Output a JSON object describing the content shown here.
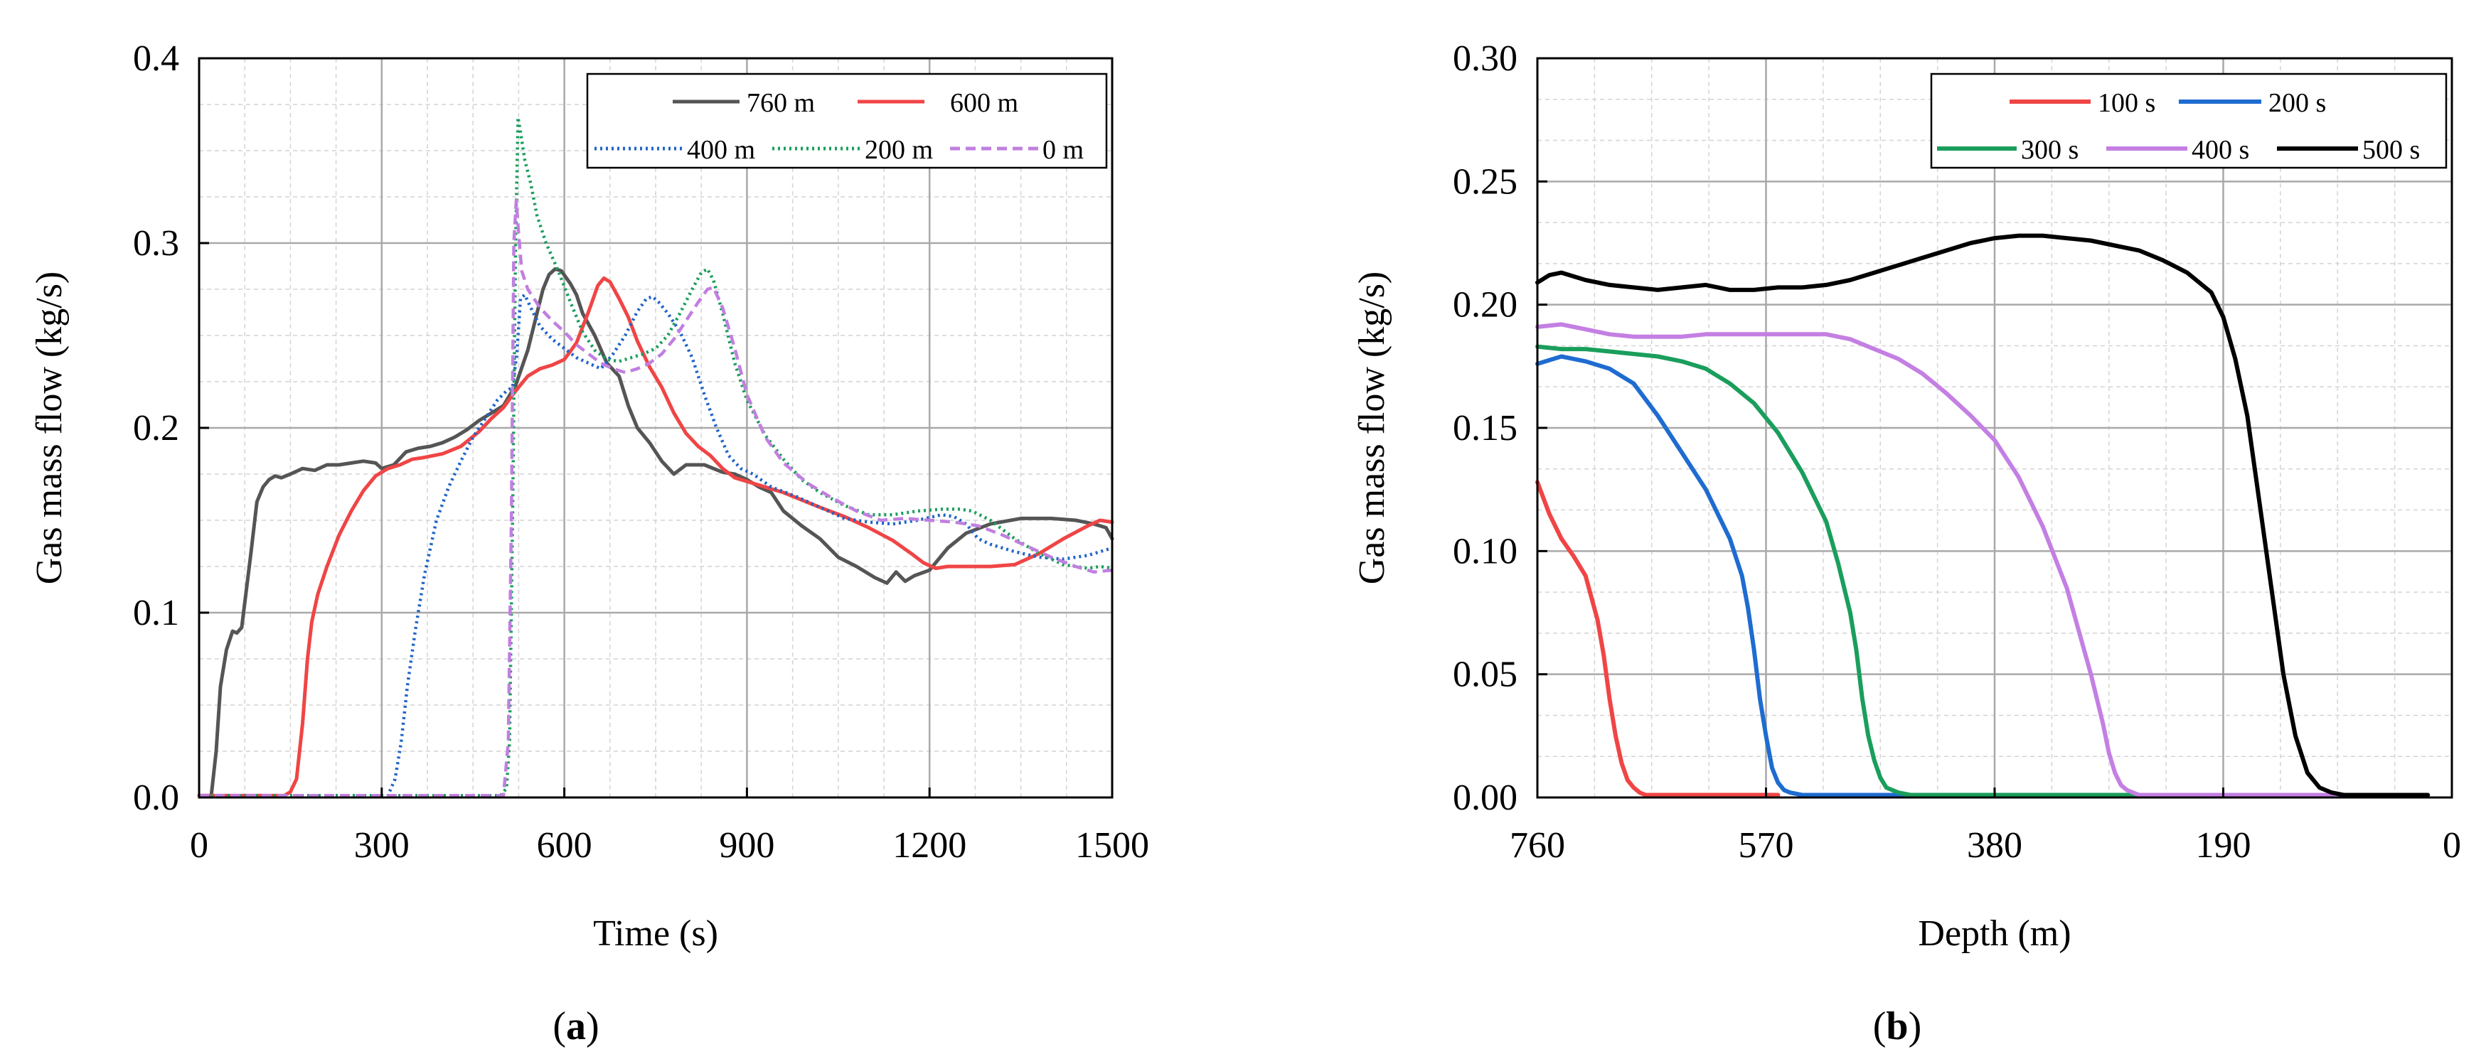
{
  "chart_data": [
    {
      "type": "line",
      "panel_label": "(a)",
      "panel_letter": "a",
      "title": "",
      "xlabel": "Time (s)",
      "ylabel": "Gas mass flow (kg/s)",
      "xlim": [
        0,
        1500
      ],
      "ylim": [
        0,
        0.4
      ],
      "xticks": [
        "0",
        "300",
        "600",
        "900",
        "1200",
        "1500"
      ],
      "yticks": [
        "0.0",
        "0.1",
        "0.2",
        "0.3",
        "0.4"
      ],
      "xtick_values": [
        0,
        300,
        600,
        900,
        1200,
        1500
      ],
      "ytick_values": [
        0,
        0.1,
        0.2,
        0.3,
        0.4
      ],
      "grid": true,
      "legend_position": "top-right",
      "legend_rows": [
        [
          "760 m",
          "600 m"
        ],
        [
          "400 m",
          "200 m",
          "0 m"
        ]
      ],
      "series": [
        {
          "name": "760 m",
          "color": "#555555",
          "dash": "solid",
          "x": [
            0,
            20,
            28,
            35,
            45,
            55,
            62,
            70,
            85,
            95,
            105,
            115,
            125,
            135,
            150,
            170,
            190,
            210,
            230,
            250,
            270,
            290,
            300,
            320,
            340,
            360,
            380,
            400,
            420,
            440,
            460,
            480,
            500,
            520,
            540,
            555,
            565,
            575,
            585,
            595,
            610,
            620,
            630,
            650,
            670,
            690,
            705,
            720,
            740,
            760,
            780,
            800,
            830,
            860,
            880,
            900,
            920,
            940,
            960,
            990,
            1020,
            1050,
            1080,
            1110,
            1130,
            1145,
            1160,
            1175,
            1200,
            1230,
            1260,
            1300,
            1350,
            1400,
            1440,
            1470,
            1490,
            1500
          ],
          "y": [
            0.001,
            0.001,
            0.025,
            0.06,
            0.08,
            0.09,
            0.089,
            0.092,
            0.132,
            0.16,
            0.168,
            0.172,
            0.174,
            0.173,
            0.175,
            0.178,
            0.177,
            0.18,
            0.18,
            0.181,
            0.182,
            0.181,
            0.178,
            0.18,
            0.187,
            0.189,
            0.19,
            0.192,
            0.195,
            0.199,
            0.204,
            0.208,
            0.212,
            0.223,
            0.242,
            0.262,
            0.275,
            0.283,
            0.286,
            0.285,
            0.278,
            0.272,
            0.262,
            0.25,
            0.235,
            0.228,
            0.212,
            0.2,
            0.192,
            0.182,
            0.175,
            0.18,
            0.18,
            0.176,
            0.175,
            0.172,
            0.168,
            0.165,
            0.155,
            0.147,
            0.14,
            0.13,
            0.125,
            0.119,
            0.116,
            0.122,
            0.117,
            0.12,
            0.123,
            0.135,
            0.143,
            0.148,
            0.151,
            0.151,
            0.15,
            0.148,
            0.146,
            0.14
          ]
        },
        {
          "name": "600 m",
          "color": "#f04545",
          "dash": "solid",
          "x": [
            0,
            140,
            150,
            160,
            170,
            178,
            185,
            195,
            210,
            230,
            250,
            270,
            290,
            310,
            330,
            350,
            370,
            400,
            430,
            460,
            480,
            500,
            520,
            540,
            560,
            580,
            600,
            620,
            640,
            655,
            665,
            675,
            690,
            705,
            720,
            740,
            760,
            780,
            800,
            820,
            840,
            860,
            880,
            900,
            930,
            960,
            990,
            1020,
            1060,
            1100,
            1140,
            1170,
            1190,
            1210,
            1230,
            1260,
            1300,
            1340,
            1380,
            1420,
            1460,
            1480,
            1500
          ],
          "y": [
            0.001,
            0.001,
            0.003,
            0.01,
            0.04,
            0.075,
            0.095,
            0.11,
            0.125,
            0.142,
            0.155,
            0.166,
            0.174,
            0.178,
            0.18,
            0.183,
            0.184,
            0.186,
            0.19,
            0.198,
            0.205,
            0.211,
            0.22,
            0.228,
            0.232,
            0.234,
            0.237,
            0.246,
            0.263,
            0.277,
            0.281,
            0.279,
            0.27,
            0.26,
            0.247,
            0.233,
            0.222,
            0.208,
            0.197,
            0.19,
            0.185,
            0.178,
            0.173,
            0.171,
            0.168,
            0.165,
            0.161,
            0.157,
            0.152,
            0.146,
            0.139,
            0.132,
            0.127,
            0.124,
            0.125,
            0.125,
            0.125,
            0.126,
            0.132,
            0.14,
            0.147,
            0.15,
            0.149
          ]
        },
        {
          "name": "400 m",
          "color": "#2164c9",
          "dash": "dotted",
          "x": [
            0,
            310,
            322,
            332,
            342,
            355,
            370,
            390,
            410,
            430,
            450,
            470,
            490,
            505,
            515,
            522,
            528,
            535,
            545,
            560,
            580,
            600,
            620,
            640,
            660,
            680,
            700,
            720,
            735,
            745,
            755,
            770,
            790,
            810,
            830,
            850,
            870,
            890,
            910,
            940,
            980,
            1020,
            1060,
            1100,
            1140,
            1180,
            1220,
            1240,
            1260,
            1280,
            1300,
            1340,
            1380,
            1420,
            1460,
            1480,
            1500
          ],
          "y": [
            0.001,
            0.001,
            0.01,
            0.03,
            0.06,
            0.09,
            0.12,
            0.15,
            0.168,
            0.182,
            0.195,
            0.205,
            0.215,
            0.22,
            0.222,
            0.24,
            0.27,
            0.272,
            0.265,
            0.255,
            0.248,
            0.243,
            0.238,
            0.235,
            0.232,
            0.24,
            0.25,
            0.263,
            0.27,
            0.271,
            0.268,
            0.262,
            0.252,
            0.238,
            0.218,
            0.2,
            0.185,
            0.178,
            0.175,
            0.168,
            0.163,
            0.157,
            0.151,
            0.149,
            0.148,
            0.15,
            0.153,
            0.152,
            0.148,
            0.14,
            0.137,
            0.133,
            0.13,
            0.129,
            0.131,
            0.133,
            0.135
          ]
        },
        {
          "name": "200 m",
          "color": "#1a9e5c",
          "dash": "dotted",
          "x": [
            0,
            495,
            505,
            510,
            515,
            520,
            524,
            528,
            535,
            545,
            555,
            570,
            590,
            610,
            630,
            650,
            670,
            690,
            710,
            730,
            750,
            770,
            790,
            810,
            825,
            835,
            845,
            860,
            880,
            900,
            930,
            960,
            990,
            1020,
            1060,
            1100,
            1140,
            1180,
            1220,
            1250,
            1270,
            1300,
            1340,
            1380,
            1420,
            1460,
            1480,
            1500
          ],
          "y": [
            0.001,
            0.001,
            0.005,
            0.03,
            0.15,
            0.3,
            0.368,
            0.36,
            0.345,
            0.332,
            0.315,
            0.3,
            0.285,
            0.268,
            0.252,
            0.242,
            0.237,
            0.236,
            0.238,
            0.24,
            0.243,
            0.25,
            0.262,
            0.275,
            0.284,
            0.286,
            0.28,
            0.262,
            0.235,
            0.215,
            0.196,
            0.183,
            0.172,
            0.165,
            0.158,
            0.153,
            0.153,
            0.155,
            0.156,
            0.156,
            0.155,
            0.15,
            0.14,
            0.132,
            0.126,
            0.124,
            0.125,
            0.124
          ]
        },
        {
          "name": "0 m",
          "color": "#c17fe0",
          "dash": "dashed",
          "x": [
            0,
            500,
            508,
            513,
            517,
            521,
            525,
            530,
            540,
            560,
            580,
            600,
            620,
            640,
            660,
            680,
            700,
            720,
            740,
            760,
            780,
            800,
            820,
            835,
            845,
            860,
            880,
            900,
            930,
            960,
            1000,
            1040,
            1080,
            1120,
            1160,
            1200,
            1240,
            1280,
            1320,
            1360,
            1400,
            1440,
            1470,
            1500
          ],
          "y": [
            0.001,
            0.001,
            0.03,
            0.15,
            0.3,
            0.323,
            0.305,
            0.285,
            0.275,
            0.265,
            0.258,
            0.252,
            0.245,
            0.24,
            0.235,
            0.232,
            0.23,
            0.232,
            0.235,
            0.24,
            0.248,
            0.258,
            0.268,
            0.275,
            0.276,
            0.265,
            0.243,
            0.218,
            0.195,
            0.181,
            0.17,
            0.162,
            0.155,
            0.15,
            0.151,
            0.15,
            0.149,
            0.147,
            0.142,
            0.136,
            0.13,
            0.125,
            0.122,
            0.123
          ]
        }
      ]
    },
    {
      "type": "line",
      "panel_label": "(b)",
      "panel_letter": "b",
      "title": "",
      "xlabel": "Depth (m)",
      "ylabel": "Gas mass flow (kg/s)",
      "xlim": [
        760,
        0
      ],
      "ylim": [
        0,
        0.3
      ],
      "xticks": [
        "760",
        "570",
        "380",
        "190",
        "0"
      ],
      "yticks": [
        "0.00",
        "0.05",
        "0.10",
        "0.15",
        "0.20",
        "0.25",
        "0.30"
      ],
      "xtick_values": [
        760,
        570,
        380,
        190,
        0
      ],
      "ytick_values": [
        0,
        0.05,
        0.1,
        0.15,
        0.2,
        0.25,
        0.3
      ],
      "grid": true,
      "legend_position": "top-right",
      "legend_rows": [
        [
          "100 s",
          "200 s"
        ],
        [
          "300 s",
          "400 s",
          "500 s"
        ]
      ],
      "series": [
        {
          "name": "100 s",
          "color": "#f04545",
          "dash": "solid",
          "x": [
            760,
            750,
            740,
            730,
            720,
            710,
            705,
            700,
            695,
            690,
            685,
            680,
            675,
            670,
            660,
            640,
            600,
            560
          ],
          "y": [
            0.128,
            0.115,
            0.105,
            0.098,
            0.09,
            0.072,
            0.058,
            0.04,
            0.025,
            0.014,
            0.007,
            0.004,
            0.002,
            0.001,
            0.001,
            0.001,
            0.001,
            0.001
          ],
          "label_note": ""
        },
        {
          "name": "200 s",
          "color": "#1f6cd0",
          "dash": "solid",
          "x": [
            760,
            740,
            720,
            700,
            680,
            660,
            640,
            620,
            600,
            590,
            585,
            580,
            575,
            570,
            565,
            560,
            555,
            550,
            540,
            530,
            520,
            500,
            400,
            330
          ],
          "y": [
            0.176,
            0.179,
            0.177,
            0.174,
            0.168,
            0.155,
            0.14,
            0.125,
            0.105,
            0.09,
            0.077,
            0.06,
            0.04,
            0.025,
            0.012,
            0.006,
            0.003,
            0.002,
            0.001,
            0.001,
            0.001,
            0.001,
            0.001,
            0.001
          ],
          "label_note": ""
        },
        {
          "name": "300 s",
          "color": "#1a9e5c",
          "dash": "solid",
          "x": [
            760,
            740,
            720,
            700,
            680,
            660,
            640,
            620,
            600,
            580,
            560,
            540,
            520,
            510,
            500,
            495,
            490,
            485,
            480,
            475,
            470,
            460,
            450,
            440,
            400,
            300,
            200
          ],
          "y": [
            0.183,
            0.182,
            0.182,
            0.181,
            0.18,
            0.179,
            0.177,
            0.174,
            0.168,
            0.16,
            0.148,
            0.132,
            0.112,
            0.095,
            0.075,
            0.06,
            0.04,
            0.025,
            0.015,
            0.008,
            0.004,
            0.002,
            0.001,
            0.001,
            0.001,
            0.001,
            0.001
          ],
          "label_note": ""
        },
        {
          "name": "400 s",
          "color": "#c47fe3",
          "dash": "solid",
          "x": [
            760,
            740,
            720,
            700,
            680,
            660,
            640,
            620,
            600,
            580,
            560,
            540,
            520,
            500,
            480,
            460,
            440,
            420,
            400,
            380,
            360,
            340,
            320,
            300,
            290,
            285,
            280,
            275,
            270,
            265,
            260,
            250,
            240,
            200,
            100,
            40
          ],
          "y": [
            0.191,
            0.192,
            0.19,
            0.188,
            0.187,
            0.187,
            0.187,
            0.188,
            0.188,
            0.188,
            0.188,
            0.188,
            0.188,
            0.186,
            0.182,
            0.178,
            0.172,
            0.164,
            0.155,
            0.145,
            0.13,
            0.11,
            0.085,
            0.05,
            0.03,
            0.018,
            0.01,
            0.005,
            0.003,
            0.002,
            0.001,
            0.001,
            0.001,
            0.001,
            0.001,
            0.001
          ],
          "label_note": ""
        },
        {
          "name": "500 s",
          "color": "#000000",
          "dash": "solid",
          "x": [
            760,
            750,
            740,
            720,
            700,
            680,
            660,
            640,
            620,
            600,
            580,
            560,
            540,
            520,
            500,
            480,
            460,
            440,
            420,
            400,
            380,
            360,
            340,
            320,
            300,
            280,
            260,
            240,
            220,
            200,
            190,
            180,
            170,
            160,
            150,
            140,
            130,
            120,
            110,
            100,
            90,
            70,
            50,
            30,
            20
          ],
          "y": [
            0.209,
            0.212,
            0.213,
            0.21,
            0.208,
            0.207,
            0.206,
            0.207,
            0.208,
            0.206,
            0.206,
            0.207,
            0.207,
            0.208,
            0.21,
            0.213,
            0.216,
            0.219,
            0.222,
            0.225,
            0.227,
            0.228,
            0.228,
            0.227,
            0.226,
            0.224,
            0.222,
            0.218,
            0.213,
            0.205,
            0.195,
            0.178,
            0.155,
            0.12,
            0.085,
            0.05,
            0.025,
            0.01,
            0.004,
            0.002,
            0.001,
            0.001,
            0.001,
            0.001,
            0.001
          ],
          "label_note": ""
        }
      ]
    }
  ]
}
